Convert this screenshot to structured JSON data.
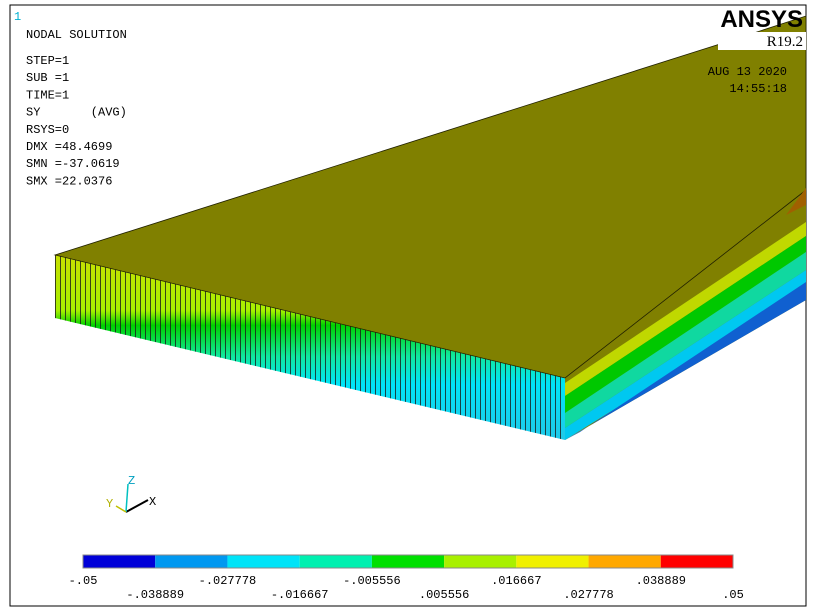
{
  "window_number": "1",
  "title": "NODAL SOLUTION",
  "info": [
    "STEP=1",
    "SUB =1",
    "TIME=1",
    "SY       (AVG)",
    "RSYS=0",
    "DMX =48.4699",
    "SMN =-37.0619",
    "SMX =22.0376"
  ],
  "logo": {
    "name": "ANSYS",
    "release": "R19.2"
  },
  "date": "AUG 13 2020",
  "time": "14:55:18",
  "triad": {
    "z": "Z",
    "y": "Y",
    "x": "X"
  },
  "legend": {
    "colors": [
      "#0000d8",
      "#0098f0",
      "#00e4f8",
      "#00f0b0",
      "#00e000",
      "#a8f000",
      "#f0f000",
      "#ffa800",
      "#ff0000"
    ],
    "labels": [
      "-.05",
      "-.038889",
      "-.027778",
      "-.016667",
      "-.005556",
      ".005556",
      ".016667",
      ".027778",
      ".038889",
      ".05"
    ]
  }
}
